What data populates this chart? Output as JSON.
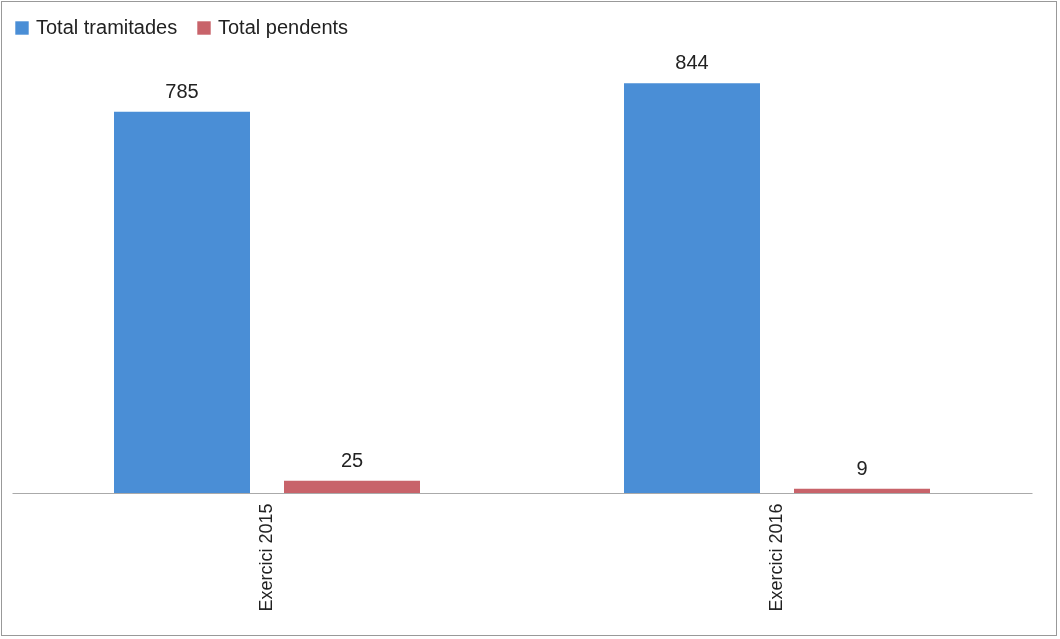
{
  "chart_data": {
    "type": "bar",
    "categories": [
      "Exercici 2015",
      "Exercici 2016"
    ],
    "series": [
      {
        "name": "Total tramitades",
        "color": "#4a8ed6",
        "values": [
          785,
          844
        ]
      },
      {
        "name": "Total pendents",
        "color": "#c8636a",
        "values": [
          25,
          9
        ]
      }
    ],
    "data_labels": true,
    "legend": "top",
    "grid": false
  }
}
